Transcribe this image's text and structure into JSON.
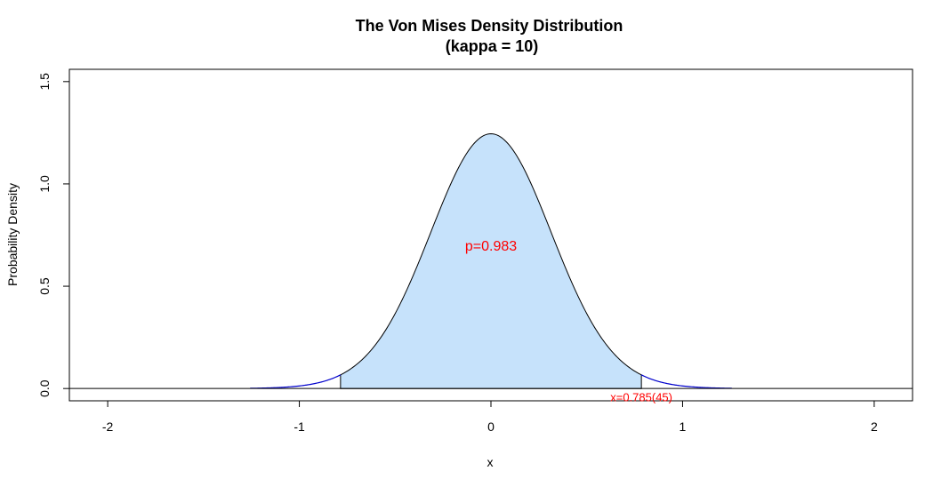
{
  "chart_data": {
    "type": "area",
    "title": "The Von Mises Density Distribution",
    "subtitle": "(kappa = 10)",
    "xlabel": "x",
    "ylabel": "Probability Density",
    "xlim": [
      -2.2,
      2.2
    ],
    "ylim": [
      -0.06,
      1.56
    ],
    "x_ticks": [
      -2,
      -1,
      0,
      1,
      2
    ],
    "x_tick_labels": [
      "-2",
      "-1",
      "0",
      "1",
      "2"
    ],
    "y_ticks": [
      0.0,
      0.5,
      1.0,
      1.5
    ],
    "y_tick_labels": [
      "0.0",
      "0.5",
      "1.0",
      "1.5"
    ],
    "distribution": {
      "name": "von Mises",
      "mu": 0,
      "kappa": 10
    },
    "curve_range": [
      -1.2566,
      1.2566
    ],
    "shaded_range": [
      -0.785,
      0.785
    ],
    "baseline_y": 0,
    "colors": {
      "fill": "#c6e2fb",
      "curve": "#000000",
      "tails": "#0000cc",
      "annotation": "#ff0000"
    },
    "annotations": [
      {
        "text": "p=0.983",
        "x": 0,
        "y": 0.7
      },
      {
        "text": "x=0.785(45)",
        "x": 0.785,
        "y": -0.04
      }
    ]
  }
}
